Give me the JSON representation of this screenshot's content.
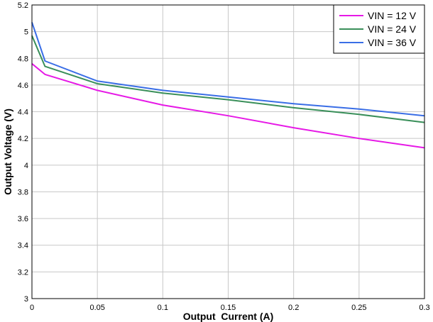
{
  "chart_data": {
    "type": "line",
    "title": "",
    "xlabel": "Output  Current (A)",
    "ylabel": "Output Voltage (V)",
    "xlim": [
      0,
      0.3
    ],
    "ylim": [
      3,
      5.2
    ],
    "xticks": [
      0,
      0.05,
      0.1,
      0.15,
      0.2,
      0.25,
      0.3
    ],
    "yticks": [
      3,
      3.2,
      3.4,
      3.6,
      3.8,
      4,
      4.2,
      4.4,
      4.6,
      4.8,
      5,
      5.2
    ],
    "xtick_labels": [
      "0",
      "0.05",
      "0.1",
      "0.15",
      "0.2",
      "0.25",
      "0.3"
    ],
    "ytick_labels": [
      "3",
      "3.2",
      "3.4",
      "3.6",
      "3.8",
      "4",
      "4.2",
      "4.4",
      "4.6",
      "4.8",
      "5",
      "5.2"
    ],
    "grid": true,
    "legend_position": "top-right",
    "series": [
      {
        "name": "VIN = 12 V",
        "color": "#e619e6",
        "x": [
          0,
          0.01,
          0.05,
          0.1,
          0.15,
          0.2,
          0.25,
          0.3
        ],
        "y": [
          4.76,
          4.68,
          4.56,
          4.45,
          4.37,
          4.28,
          4.2,
          4.13
        ]
      },
      {
        "name": "VIN = 24 V",
        "color": "#3a8f5a",
        "x": [
          0,
          0.01,
          0.05,
          0.1,
          0.15,
          0.2,
          0.25,
          0.3
        ],
        "y": [
          4.97,
          4.74,
          4.61,
          4.54,
          4.49,
          4.43,
          4.38,
          4.32
        ]
      },
      {
        "name": "VIN = 36 V",
        "color": "#3a6ee6",
        "x": [
          0,
          0.01,
          0.05,
          0.1,
          0.15,
          0.2,
          0.25,
          0.3
        ],
        "y": [
          5.07,
          4.78,
          4.63,
          4.56,
          4.51,
          4.46,
          4.42,
          4.37
        ]
      }
    ]
  }
}
